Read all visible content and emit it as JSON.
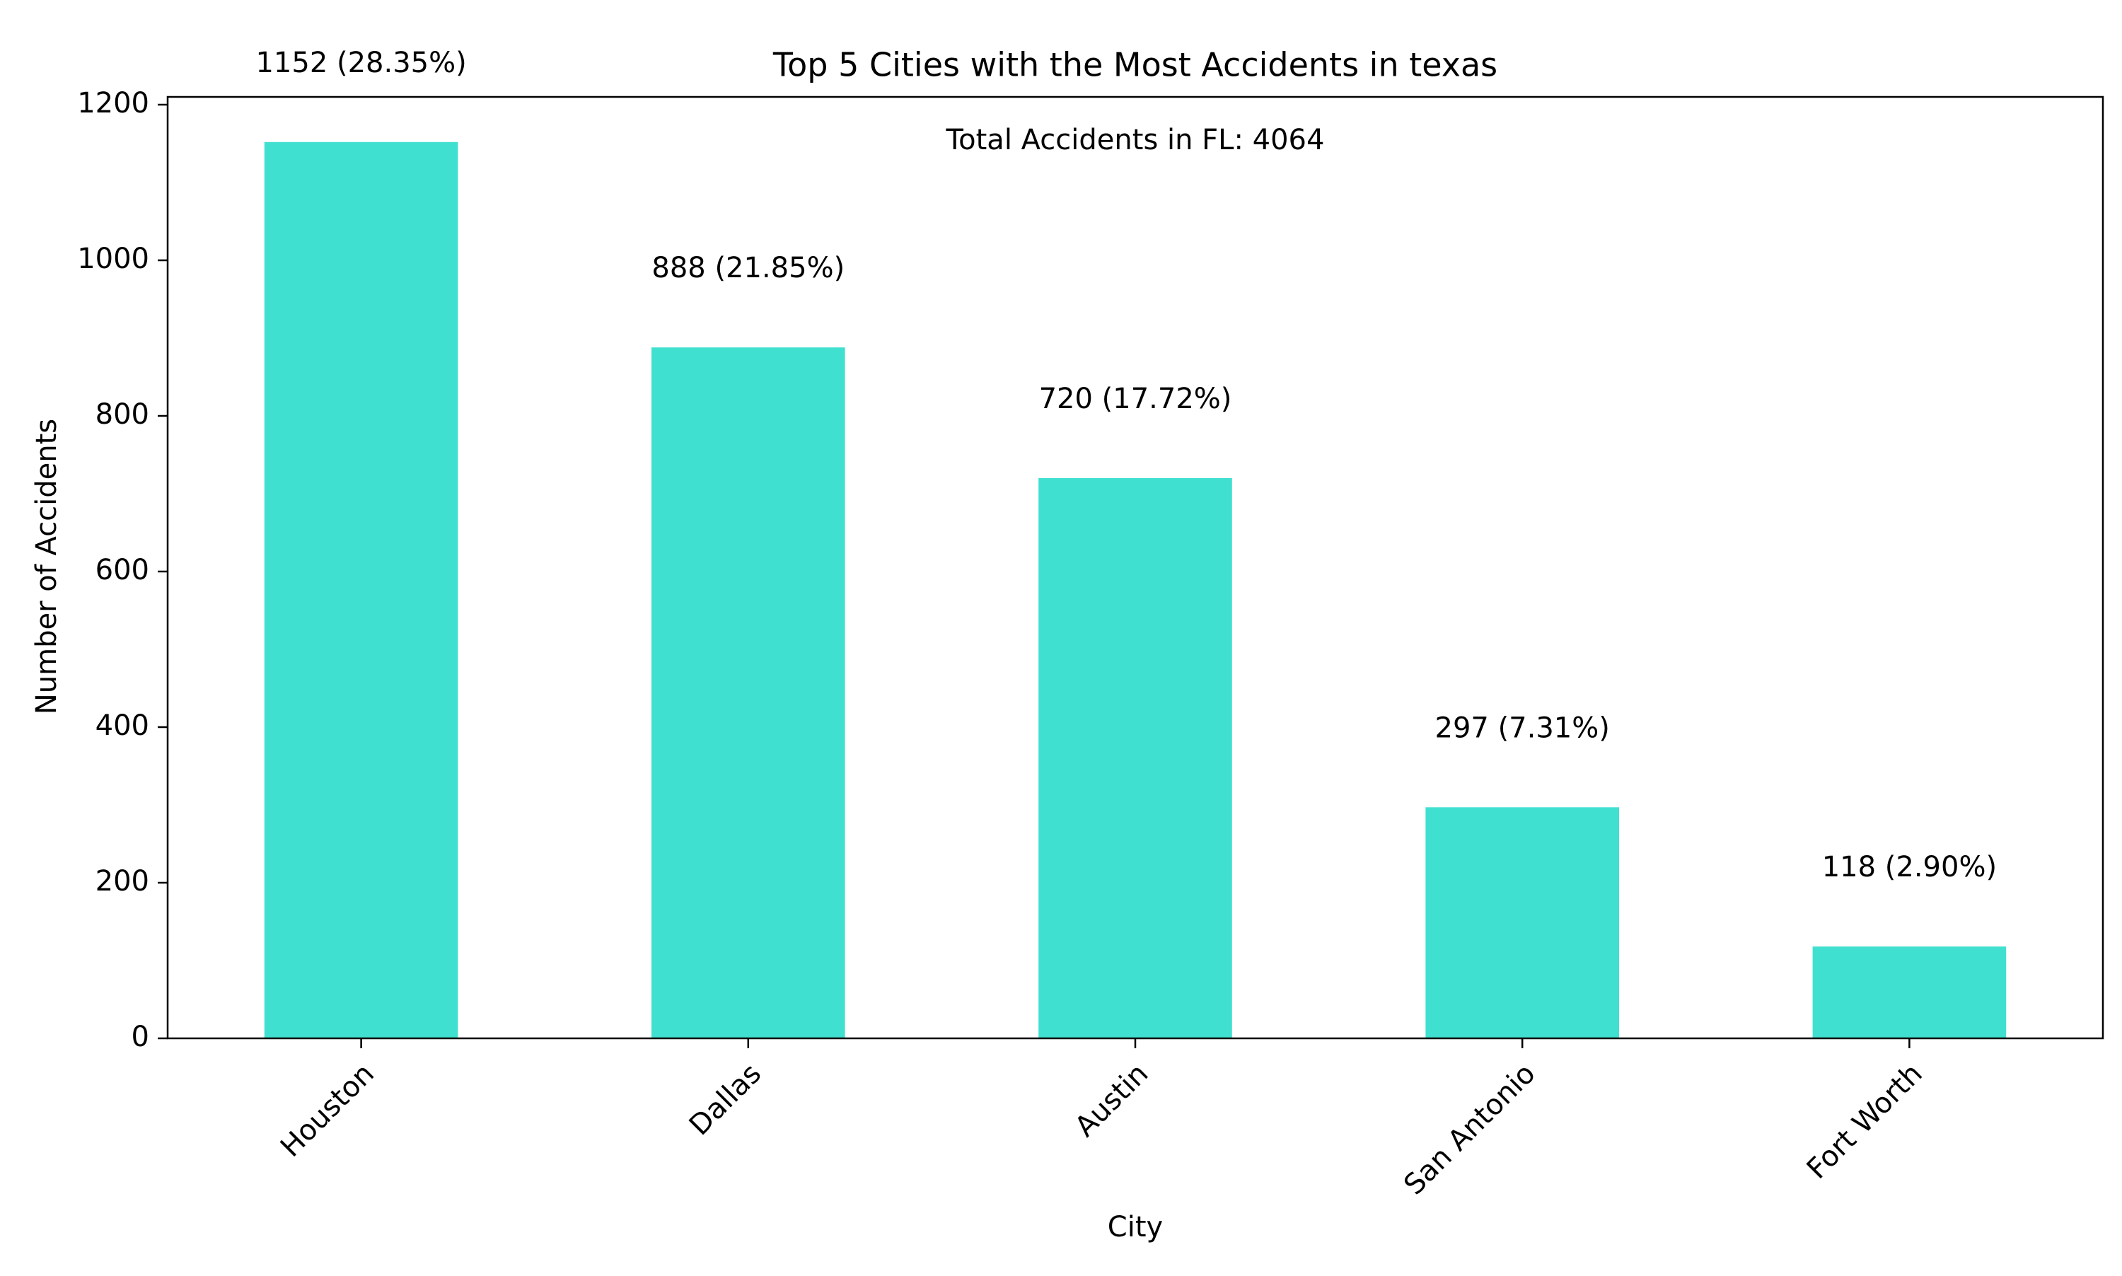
{
  "chart_data": {
    "type": "bar",
    "title": "Top 5 Cities with the Most Accidents in texas",
    "xlabel": "City",
    "ylabel": "Number of Accidents",
    "categories": [
      "Houston",
      "Dallas",
      "Austin",
      "San Antonio",
      "Fort Worth"
    ],
    "values": [
      1152,
      888,
      720,
      297,
      118
    ],
    "bar_labels": [
      "1152 (28.35%)",
      "888 (21.85%)",
      "720 (17.72%)",
      "297 (7.31%)",
      "118 (2.90%)"
    ],
    "annotation": "Total Accidents in FL: 4064",
    "ylim": [
      0,
      1210
    ],
    "yticks": [
      0,
      200,
      400,
      600,
      800,
      1000,
      1200
    ],
    "grid": false,
    "legend": "none",
    "bar_color": "#40e0d0"
  }
}
